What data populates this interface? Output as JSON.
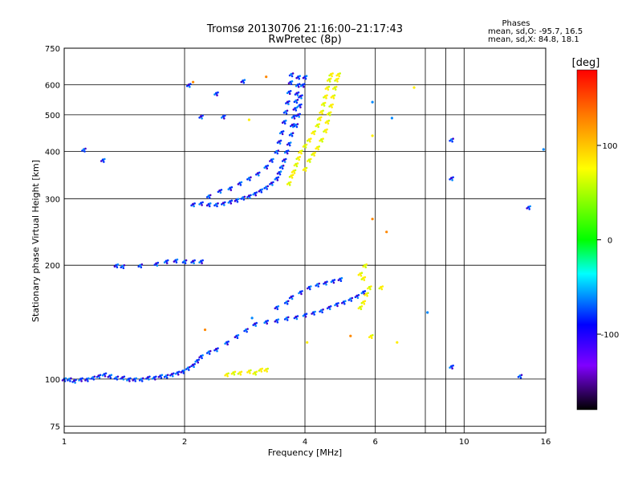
{
  "chart_data": {
    "type": "scatter",
    "title": "Tromsø 20130706 21:16:00–21:17:43",
    "subtitle": "RwPretec (8p)",
    "xlabel": "Frequency [MHz]",
    "ylabel": "Stationary phase Virtual Height [km]",
    "x_scale": "log",
    "y_scale": "log",
    "xlim": [
      1,
      16
    ],
    "ylim": [
      72,
      750
    ],
    "x_ticks": [
      1,
      2,
      4,
      6,
      10,
      16
    ],
    "x_gridlines": [
      1,
      2,
      4,
      6,
      8,
      9,
      10,
      16
    ],
    "y_ticks": [
      75,
      100,
      200,
      300,
      400,
      500,
      600,
      750
    ],
    "y_tick_labels_y": [
      75,
      100,
      200,
      300,
      400,
      500,
      600,
      750
    ],
    "grid": true,
    "annotation": {
      "title": "Phases",
      "line1": "mean, sd,O: -95.7, 16.5",
      "line2": "mean, sd,X:  84.8, 18.1"
    },
    "colorbar": {
      "label": "[deg]",
      "range": [
        -180,
        180
      ],
      "ticks": [
        100,
        0,
        -100
      ],
      "colors": [
        "#ff0000",
        "#ff8000",
        "#ffff00",
        "#00ff00",
        "#00ffff",
        "#0000ff",
        "#8000ff",
        "#000000"
      ]
    },
    "point_colors": {
      "o_mode": "#0033ff",
      "o_mode_alt": "#0088ff",
      "o_mode_dark": "#4400cc",
      "x_mode": "#ffee00",
      "x_mode_alt": "#ccff00",
      "stray": "#ff8800"
    },
    "series": [
      {
        "mode": "O",
        "points": [
          [
            1.0,
            100
          ],
          [
            1.03,
            100
          ],
          [
            1.06,
            99
          ],
          [
            1.1,
            100
          ],
          [
            1.14,
            100
          ],
          [
            1.18,
            101
          ],
          [
            1.22,
            102
          ],
          [
            1.26,
            103
          ],
          [
            1.3,
            102
          ],
          [
            1.35,
            101
          ],
          [
            1.4,
            101
          ],
          [
            1.45,
            100
          ],
          [
            1.5,
            100
          ],
          [
            1.56,
            100
          ],
          [
            1.62,
            101
          ],
          [
            1.68,
            101
          ],
          [
            1.74,
            102
          ],
          [
            1.8,
            102
          ],
          [
            1.86,
            103
          ],
          [
            1.92,
            104
          ],
          [
            1.98,
            105
          ],
          [
            2.04,
            107
          ],
          [
            2.1,
            109
          ],
          [
            2.15,
            112
          ],
          [
            2.2,
            115
          ],
          [
            2.3,
            118
          ],
          [
            2.4,
            120
          ],
          [
            2.55,
            125
          ],
          [
            2.7,
            130
          ],
          [
            2.85,
            135
          ],
          [
            3.0,
            140
          ],
          [
            3.2,
            142
          ],
          [
            3.4,
            143
          ],
          [
            3.6,
            145
          ],
          [
            3.8,
            146
          ],
          [
            4.0,
            148
          ],
          [
            4.2,
            150
          ],
          [
            4.4,
            152
          ],
          [
            4.6,
            155
          ],
          [
            4.8,
            158
          ],
          [
            5.0,
            160
          ],
          [
            5.2,
            163
          ],
          [
            5.4,
            166
          ],
          [
            5.6,
            170
          ],
          [
            3.4,
            155
          ],
          [
            3.6,
            160
          ],
          [
            3.7,
            165
          ],
          [
            3.9,
            170
          ],
          [
            4.1,
            175
          ],
          [
            4.3,
            178
          ],
          [
            4.5,
            180
          ],
          [
            4.7,
            182
          ],
          [
            4.9,
            184
          ],
          [
            1.55,
            200
          ],
          [
            1.7,
            202
          ],
          [
            1.8,
            205
          ],
          [
            1.9,
            206
          ],
          [
            2.0,
            205
          ],
          [
            2.1,
            205
          ],
          [
            2.2,
            205
          ],
          [
            1.35,
            200
          ],
          [
            1.4,
            199
          ],
          [
            2.1,
            290
          ],
          [
            2.2,
            292
          ],
          [
            2.3,
            290
          ],
          [
            2.4,
            290
          ],
          [
            2.5,
            292
          ],
          [
            2.6,
            295
          ],
          [
            2.7,
            298
          ],
          [
            2.8,
            302
          ],
          [
            2.9,
            305
          ],
          [
            3.0,
            310
          ],
          [
            3.1,
            316
          ],
          [
            3.2,
            322
          ],
          [
            3.3,
            330
          ],
          [
            3.4,
            340
          ],
          [
            3.45,
            352
          ],
          [
            3.5,
            365
          ],
          [
            3.55,
            380
          ],
          [
            3.6,
            400
          ],
          [
            3.65,
            420
          ],
          [
            3.7,
            445
          ],
          [
            3.72,
            470
          ],
          [
            3.75,
            495
          ],
          [
            3.78,
            520
          ],
          [
            3.8,
            545
          ],
          [
            3.82,
            570
          ],
          [
            3.84,
            600
          ],
          [
            3.85,
            630
          ],
          [
            2.3,
            305
          ],
          [
            2.45,
            315
          ],
          [
            2.6,
            320
          ],
          [
            2.75,
            330
          ],
          [
            2.9,
            340
          ],
          [
            3.05,
            350
          ],
          [
            3.2,
            365
          ],
          [
            3.3,
            380
          ],
          [
            3.4,
            400
          ],
          [
            3.45,
            425
          ],
          [
            3.5,
            450
          ],
          [
            3.55,
            480
          ],
          [
            3.58,
            510
          ],
          [
            3.62,
            540
          ],
          [
            3.65,
            575
          ],
          [
            3.68,
            610
          ],
          [
            3.7,
            640
          ],
          [
            3.9,
            560
          ],
          [
            3.95,
            600
          ],
          [
            4.0,
            630
          ],
          [
            3.8,
            470
          ],
          [
            3.85,
            500
          ],
          [
            3.88,
            530
          ],
          [
            1.25,
            380
          ],
          [
            1.12,
            405
          ],
          [
            2.05,
            600
          ],
          [
            2.4,
            570
          ],
          [
            2.8,
            615
          ],
          [
            9.3,
            430
          ],
          [
            9.3,
            340
          ],
          [
            9.3,
            108
          ],
          [
            14.5,
            285
          ],
          [
            13.8,
            102
          ],
          [
            2.2,
            495
          ],
          [
            2.5,
            495
          ]
        ]
      },
      {
        "mode": "X",
        "points": [
          [
            2.55,
            103
          ],
          [
            2.65,
            104
          ],
          [
            2.75,
            104
          ],
          [
            2.9,
            105
          ],
          [
            3.0,
            104
          ],
          [
            3.1,
            106
          ],
          [
            3.2,
            106
          ],
          [
            3.65,
            330
          ],
          [
            3.7,
            345
          ],
          [
            3.75,
            355
          ],
          [
            3.8,
            370
          ],
          [
            3.85,
            385
          ],
          [
            3.9,
            400
          ],
          [
            4.0,
            415
          ],
          [
            4.1,
            430
          ],
          [
            4.2,
            450
          ],
          [
            4.3,
            470
          ],
          [
            4.35,
            490
          ],
          [
            4.4,
            510
          ],
          [
            4.45,
            535
          ],
          [
            4.5,
            560
          ],
          [
            4.55,
            590
          ],
          [
            4.6,
            620
          ],
          [
            4.65,
            640
          ],
          [
            4.0,
            360
          ],
          [
            4.1,
            380
          ],
          [
            4.2,
            395
          ],
          [
            4.3,
            410
          ],
          [
            4.4,
            430
          ],
          [
            4.5,
            455
          ],
          [
            4.55,
            480
          ],
          [
            4.6,
            505
          ],
          [
            4.65,
            530
          ],
          [
            4.7,
            560
          ],
          [
            4.75,
            590
          ],
          [
            4.8,
            620
          ],
          [
            4.85,
            640
          ],
          [
            5.5,
            155
          ],
          [
            5.6,
            160
          ],
          [
            5.7,
            168
          ],
          [
            5.8,
            175
          ],
          [
            5.6,
            185
          ],
          [
            5.5,
            190
          ],
          [
            5.65,
            200
          ],
          [
            6.2,
            175
          ],
          [
            5.85,
            130
          ]
        ]
      },
      {
        "mode": "stray",
        "points": [
          [
            3.2,
            630
          ],
          [
            2.9,
            485
          ],
          [
            6.6,
            490
          ],
          [
            6.4,
            245
          ],
          [
            7.5,
            590
          ],
          [
            8.1,
            150
          ],
          [
            5.2,
            130
          ],
          [
            4.05,
            125
          ],
          [
            2.95,
            145
          ],
          [
            2.25,
            135
          ],
          [
            6.8,
            125
          ],
          [
            15.8,
            405
          ],
          [
            2.1,
            610
          ],
          [
            5.9,
            440
          ],
          [
            5.9,
            540
          ],
          [
            5.9,
            265
          ]
        ]
      }
    ]
  }
}
